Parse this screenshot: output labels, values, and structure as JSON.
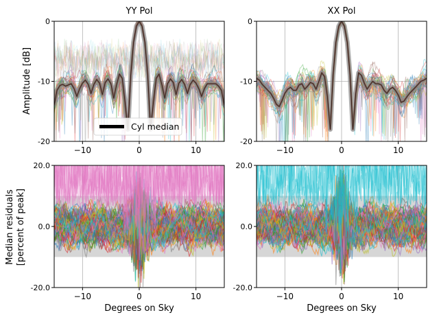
{
  "figure": {
    "xlabel": "Degrees on Sky",
    "ylabel_top": "Amplitude [dB]",
    "ylabel_bottom_line1": "Median residuals",
    "ylabel_bottom_line2": "[percent of peak]",
    "legend_label": "Cyl median"
  },
  "chart_data": [
    {
      "type": "line",
      "title": "YY Pol",
      "xlim": [
        -15,
        15
      ],
      "ylim": [
        -20,
        0
      ],
      "xticks": [
        -10,
        0,
        10
      ],
      "xtick_labels": [
        "−10",
        "0",
        "10"
      ],
      "yticks": [
        0,
        -10,
        -20
      ],
      "ytick_labels": [
        "0",
        "-10",
        "-20"
      ],
      "grid": true,
      "legend": "lower-center",
      "series": [
        {
          "name": "Cyl median",
          "x": [
            -15,
            -14.5,
            -14,
            -13.5,
            -13,
            -12.5,
            -12,
            -11.5,
            -11,
            -10.5,
            -10,
            -9.5,
            -9,
            -8.5,
            -8,
            -7.5,
            -7,
            -6.5,
            -6,
            -5.5,
            -5,
            -4.5,
            -4,
            -3.5,
            -3,
            -2.5,
            -2,
            -1.5,
            -1,
            -0.5,
            0,
            0.5,
            1,
            1.5,
            2,
            2.5,
            3,
            3.5,
            4,
            4.5,
            5,
            5.5,
            6,
            6.5,
            7,
            7.5,
            8,
            8.5,
            9,
            9.5,
            10,
            10.5,
            11,
            11.5,
            12,
            12.5,
            13,
            13.5,
            14,
            14.5,
            15
          ],
          "y": [
            -14,
            -11.5,
            -10.7,
            -10.5,
            -10.8,
            -10.6,
            -10.4,
            -11.2,
            -12.5,
            -11.2,
            -10.3,
            -9.8,
            -10.5,
            -12,
            -10.5,
            -9.7,
            -10.3,
            -12.2,
            -10.2,
            -9.6,
            -10.4,
            -12.8,
            -10.6,
            -8.8,
            -9.5,
            -13.5,
            -18,
            -9,
            -3.5,
            -0.8,
            0,
            -0.8,
            -3.5,
            -9,
            -18,
            -13.5,
            -9.5,
            -8.8,
            -10.6,
            -12.8,
            -10.4,
            -9.6,
            -10.2,
            -12.2,
            -10.3,
            -9.7,
            -10.5,
            -12,
            -10.5,
            -9.8,
            -10.3,
            -11.2,
            -12.5,
            -11.2,
            -10.4,
            -10.4,
            -10.4,
            -10.4,
            -10.8,
            -11.5,
            -14
          ]
        }
      ]
    },
    {
      "type": "line",
      "title": "XX Pol",
      "xlim": [
        -15,
        15
      ],
      "ylim": [
        -20,
        0
      ],
      "xticks": [
        -10,
        0,
        10
      ],
      "xtick_labels": [
        "−10",
        "0",
        "10"
      ],
      "yticks": [
        0,
        -10,
        -20
      ],
      "ytick_labels": [
        "0",
        "-10",
        "-20"
      ],
      "grid": true,
      "series": [
        {
          "name": "Cyl median",
          "x": [
            -15,
            -14.5,
            -14,
            -13.5,
            -13,
            -12.5,
            -12,
            -11.5,
            -11,
            -10.5,
            -10,
            -9.5,
            -9,
            -8.5,
            -8,
            -7.5,
            -7,
            -6.5,
            -6,
            -5.5,
            -5,
            -4.5,
            -4,
            -3.5,
            -3,
            -2.5,
            -2,
            -1.5,
            -1,
            -0.5,
            0,
            0.5,
            1,
            1.5,
            2,
            2.5,
            3,
            3.5,
            4,
            4.5,
            5,
            5.5,
            6,
            6.5,
            7,
            7.5,
            8,
            8.5,
            9,
            9.5,
            10,
            10.5,
            11,
            11.5,
            12,
            12.5,
            13,
            13.5,
            14,
            14.5,
            15
          ],
          "y": [
            -9.5,
            -9.8,
            -10.5,
            -11,
            -11.5,
            -12,
            -12.8,
            -13.8,
            -14.2,
            -13.2,
            -12,
            -11.3,
            -11,
            -11.5,
            -11.5,
            -10.6,
            -10.4,
            -11.3,
            -10.8,
            -10.2,
            -10.4,
            -11.3,
            -10,
            -8.6,
            -9.2,
            -12.5,
            -18,
            -9,
            -3.5,
            -0.8,
            0,
            -0.8,
            -3.5,
            -9,
            -18,
            -12,
            -8.6,
            -9,
            -10.3,
            -11.3,
            -10.6,
            -10,
            -10.4,
            -10.4,
            -10.6,
            -11.5,
            -12,
            -11.3,
            -11,
            -11.5,
            -12.3,
            -13.5,
            -13.3,
            -12.6,
            -12,
            -11.5,
            -11,
            -10.5,
            -10,
            -9.8,
            -9.5
          ]
        }
      ]
    },
    {
      "type": "line",
      "title": "",
      "xlim": [
        -15,
        15
      ],
      "ylim": [
        -20,
        20
      ],
      "xticks": [
        -10,
        0,
        10
      ],
      "xtick_labels": [
        "−10",
        "0",
        "10"
      ],
      "yticks": [
        20,
        0,
        -20
      ],
      "ytick_labels": [
        "20.0",
        "0.0",
        "-20.0"
      ],
      "grid": true,
      "bands": [
        [
          -10,
          10
        ],
        [
          -5,
          5
        ]
      ]
    },
    {
      "type": "line",
      "title": "",
      "xlim": [
        -15,
        15
      ],
      "ylim": [
        -20,
        20
      ],
      "xticks": [
        -10,
        0,
        10
      ],
      "xtick_labels": [
        "−10",
        "0",
        "10"
      ],
      "yticks": [
        20,
        0,
        -20
      ],
      "ytick_labels": [
        "20.0",
        "0.0",
        "-20.0"
      ],
      "grid": true,
      "bands": [
        [
          -10,
          10
        ],
        [
          -5,
          5
        ]
      ]
    }
  ],
  "colors": [
    "#1f77b4",
    "#ff7f0e",
    "#2ca02c",
    "#d62728",
    "#9467bd",
    "#8c564b",
    "#e377c2",
    "#7f7f7f",
    "#bcbd22",
    "#17becf"
  ],
  "median_color": "#000000",
  "band_outer_color": "#d6d6d6",
  "band_inner_color": "#bdbdbd"
}
